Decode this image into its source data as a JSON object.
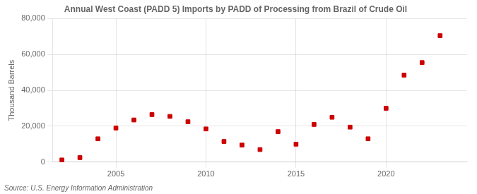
{
  "chart_data": {
    "type": "scatter",
    "title": "Annual West Coast (PADD 5) Imports by PADD of Processing from Brazil of Crude Oil",
    "ylabel": "Thousand Barrels",
    "annotations": [
      "Source: U.S. Energy Information Administration"
    ],
    "x": [
      2002,
      2003,
      2004,
      2005,
      2006,
      2007,
      2008,
      2009,
      2010,
      2011,
      2012,
      2013,
      2014,
      2015,
      2016,
      2017,
      2018,
      2019,
      2020,
      2021,
      2022,
      2023
    ],
    "values": [
      1200,
      2500,
      13000,
      19000,
      23500,
      26500,
      25500,
      22500,
      18500,
      11500,
      9500,
      7000,
      17000,
      10000,
      21000,
      25000,
      19500,
      13000,
      30000,
      48500,
      55500,
      70500
    ],
    "color": "#cc0000",
    "marker": "square",
    "xlim": [
      2001.5,
      2024.5
    ],
    "xticks": [
      2005,
      2010,
      2015,
      2020
    ],
    "ylim": [
      0,
      80000
    ],
    "yticks": [
      0,
      {
        "value": 20000,
        "label": "20,000"
      },
      {
        "value": 40000,
        "label": "40,000"
      },
      {
        "value": 60000,
        "label": "60,000"
      },
      {
        "value": 80000,
        "label": "80,000"
      }
    ],
    "grid": true
  }
}
